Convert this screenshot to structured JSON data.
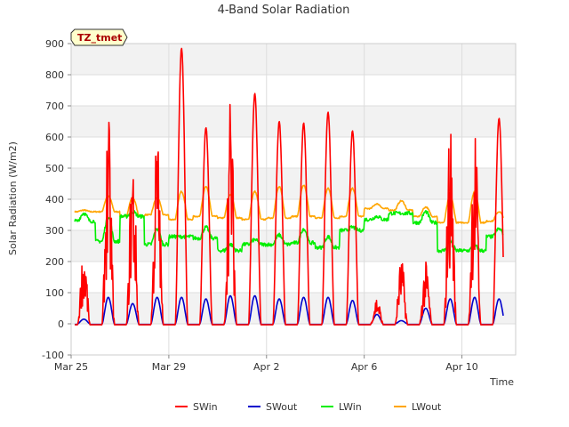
{
  "chart_data": {
    "type": "line",
    "title": "4-Band Solar Radiation",
    "xlabel": "Time",
    "ylabel": "Solar Radiation (W/m2)",
    "ylim": [
      -100,
      900
    ],
    "xlim_day": [
      0,
      18.2
    ],
    "y_ticks": [
      "-100",
      "0",
      "100",
      "200",
      "300",
      "400",
      "500",
      "600",
      "700",
      "800",
      "900"
    ],
    "x_ticks": [
      {
        "label": "Mar 25",
        "day": 0
      },
      {
        "label": "Mar 29",
        "day": 4
      },
      {
        "label": "Apr 2",
        "day": 8
      },
      {
        "label": "Apr 6",
        "day": 12
      },
      {
        "label": "Apr 10",
        "day": 16
      }
    ],
    "site_badge": "TZ_tmet",
    "legend_position": "bottom",
    "background_bands": true,
    "day_values": [
      "Mar 25",
      "Mar 26",
      "Mar 27",
      "Mar 28",
      "Mar 29",
      "Mar 30",
      "Mar 31",
      "Apr 1",
      "Apr 2",
      "Apr 3",
      "Apr 4",
      "Apr 5",
      "Apr 6",
      "Apr 7",
      "Apr 8",
      "Apr 9",
      "Apr 10",
      "Apr 11"
    ],
    "series": [
      {
        "name": "SWin",
        "color": "#ff0000",
        "daily_peak": [
          250,
          670,
          570,
          640,
          885,
          630,
          745,
          740,
          650,
          645,
          680,
          620,
          90,
          215,
          200,
          665,
          670,
          660
        ],
        "cloudy": [
          true,
          true,
          true,
          true,
          false,
          false,
          true,
          false,
          false,
          false,
          false,
          false,
          true,
          true,
          true,
          true,
          true,
          false
        ]
      },
      {
        "name": "SWout",
        "color": "#0000cc",
        "daily_peak": [
          15,
          85,
          65,
          85,
          85,
          80,
          90,
          90,
          80,
          85,
          85,
          75,
          30,
          10,
          50,
          80,
          85,
          80
        ]
      },
      {
        "name": "LWin",
        "color": "#00ee00",
        "daily_min": [
          330,
          265,
          345,
          255,
          280,
          275,
          235,
          255,
          255,
          260,
          245,
          300,
          335,
          355,
          325,
          235,
          235,
          280
        ],
        "daily_peak": [
          355,
          345,
          360,
          305,
          280,
          310,
          255,
          270,
          285,
          305,
          280,
          310,
          345,
          355,
          360,
          265,
          250,
          305
        ]
      },
      {
        "name": "LWout",
        "color": "#ffa500",
        "night_base": [
          360,
          360,
          345,
          350,
          335,
          345,
          340,
          335,
          340,
          345,
          340,
          345,
          370,
          365,
          345,
          325,
          325,
          330
        ],
        "daily_peak": [
          365,
          410,
          405,
          405,
          425,
          440,
          415,
          425,
          440,
          445,
          435,
          435,
          385,
          395,
          375,
          410,
          425,
          360
        ]
      }
    ]
  }
}
